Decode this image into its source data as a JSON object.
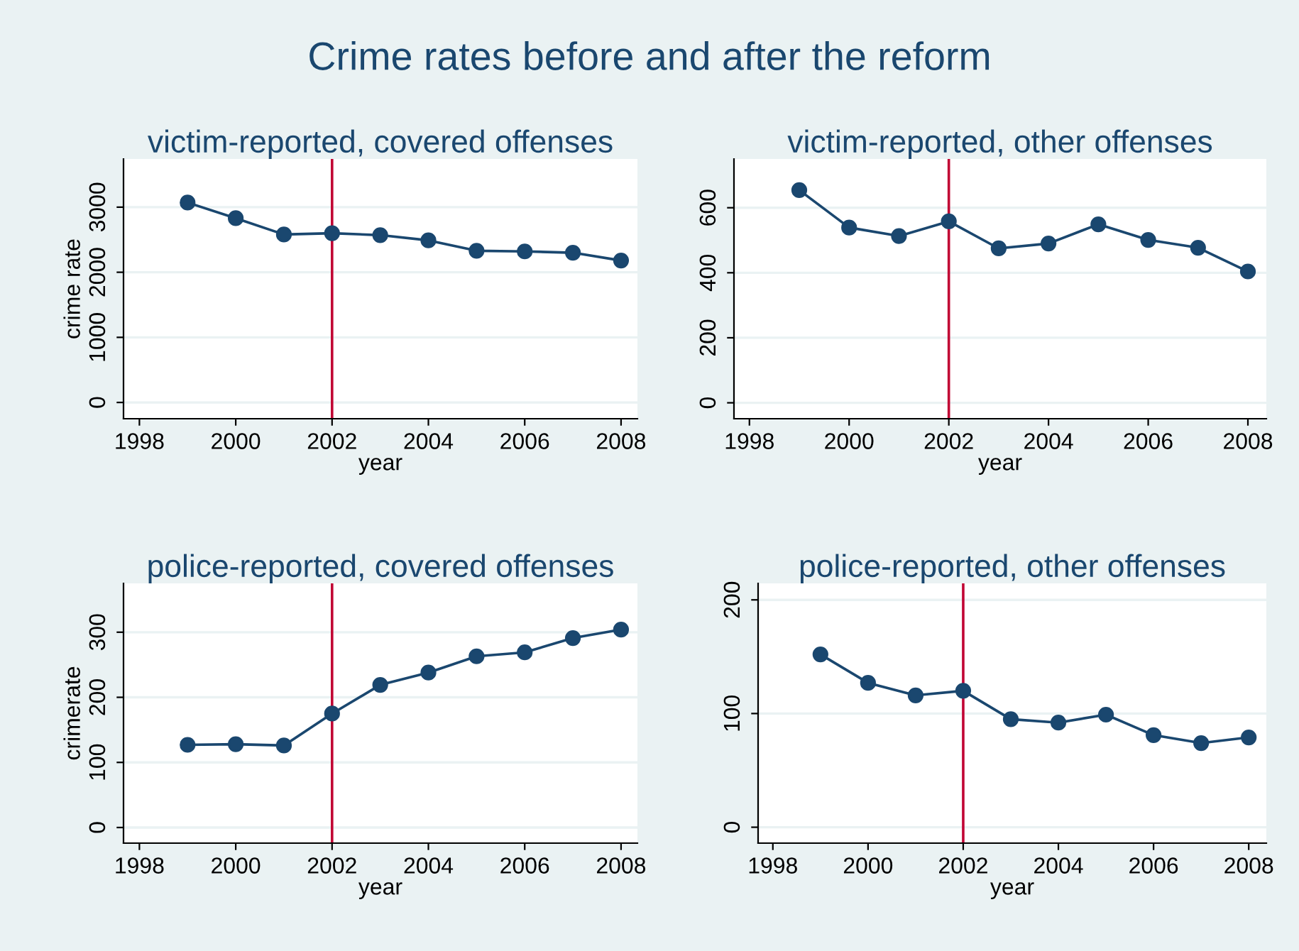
{
  "chart_data": [
    {
      "type": "line",
      "title": "victim-reported, covered offenses",
      "xlabel": "year",
      "ylabel": "crime rate",
      "x": [
        1999,
        2000,
        2001,
        2002,
        2003,
        2004,
        2005,
        2006,
        2007,
        2008
      ],
      "series": [
        {
          "color": "#1a476f",
          "values": [
            3070,
            2830,
            2580,
            2600,
            2570,
            2490,
            2330,
            2320,
            2300,
            2180
          ]
        }
      ],
      "xlim": [
        1997.67,
        2008.34
      ],
      "xticks": [
        1998,
        2000,
        2002,
        2004,
        2006,
        2008
      ],
      "ylim": [
        -250,
        3740
      ],
      "yticks": [
        0,
        1000,
        2000,
        3000
      ],
      "ref_lines": [
        {
          "axis": "x",
          "value": 2002,
          "color": "#c10534"
        }
      ],
      "grid": "y",
      "marker": "circle",
      "line_style": "solid"
    },
    {
      "type": "line",
      "title": "victim-reported, other offenses",
      "xlabel": "year",
      "x": [
        1999,
        2000,
        2001,
        2002,
        2003,
        2004,
        2005,
        2006,
        2007,
        2008
      ],
      "series": [
        {
          "color": "#1a476f",
          "values": [
            654,
            539,
            513,
            558,
            475,
            490,
            549,
            501,
            477,
            404
          ]
        }
      ],
      "xlim": [
        1997.69,
        2008.37
      ],
      "xticks": [
        1998,
        2000,
        2002,
        2004,
        2006,
        2008
      ],
      "ylim": [
        -49,
        750
      ],
      "yticks": [
        0,
        200,
        400,
        600
      ],
      "ref_lines": [
        {
          "axis": "x",
          "value": 2002,
          "color": "#c10534"
        }
      ],
      "grid": "y",
      "marker": "circle",
      "line_style": "solid"
    },
    {
      "type": "line",
      "title": "police-reported, covered offenses",
      "xlabel": "year",
      "ylabel": "crimerate",
      "x": [
        1999,
        2000,
        2001,
        2002,
        2003,
        2004,
        2005,
        2006,
        2007,
        2008
      ],
      "series": [
        {
          "color": "#1a476f",
          "values": [
            127,
            128,
            126,
            175,
            219,
            238,
            263,
            269,
            291,
            304
          ]
        }
      ],
      "xlim": [
        1997.67,
        2008.34
      ],
      "xticks": [
        1998,
        2000,
        2002,
        2004,
        2006,
        2008
      ],
      "ylim": [
        -24,
        375
      ],
      "yticks": [
        0,
        100,
        200,
        300
      ],
      "ref_lines": [
        {
          "axis": "x",
          "value": 2002,
          "color": "#c10534"
        }
      ],
      "grid": "y",
      "marker": "circle",
      "line_style": "solid"
    },
    {
      "type": "line",
      "title": "police-reported, other offenses",
      "xlabel": "year",
      "x": [
        1999,
        2000,
        2001,
        2002,
        2003,
        2004,
        2005,
        2006,
        2007,
        2008
      ],
      "series": [
        {
          "color": "#1a476f",
          "values": [
            152,
            127,
            116,
            120,
            95,
            92,
            99,
            81,
            74,
            79
          ]
        }
      ],
      "xlim": [
        1997.69,
        2008.37
      ],
      "xticks": [
        1998,
        2000,
        2002,
        2004,
        2006,
        2008
      ],
      "ylim": [
        -14,
        214.5
      ],
      "yticks": [
        0,
        100,
        200
      ],
      "ref_lines": [
        {
          "axis": "x",
          "value": 2002,
          "color": "#c10534"
        }
      ],
      "grid": "y",
      "marker": "circle",
      "line_style": "solid"
    },
    {
      "type": "other",
      "title": "Crime rates before and after the reform"
    }
  ]
}
